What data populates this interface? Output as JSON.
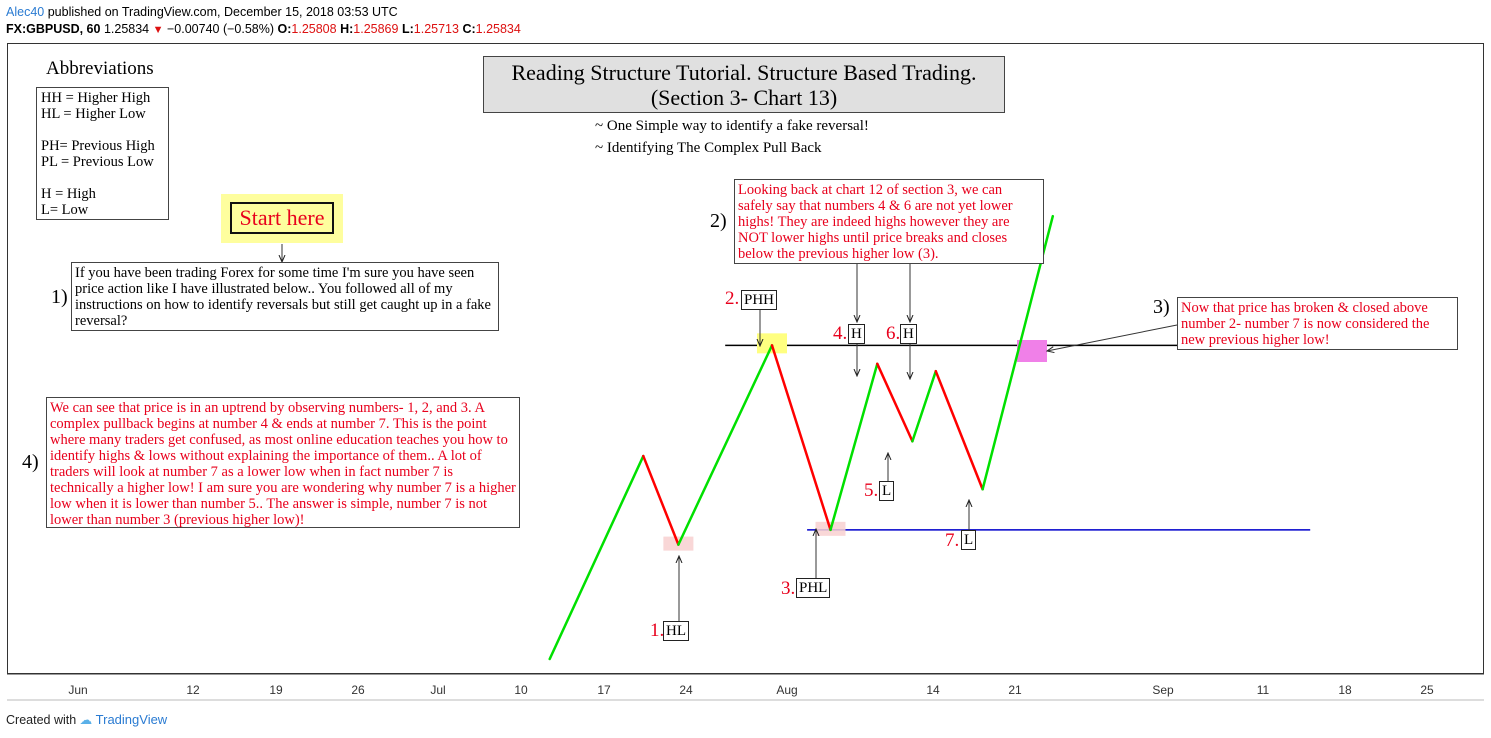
{
  "header": {
    "author": "Alec40",
    "published": "published on TradingView.com, December 15, 2018 03:53 UTC",
    "symbol": "FX:GBPUSD, 60",
    "last": "1.25834",
    "change": "−0.00740 (−0.58%)",
    "o_label": "O:",
    "o_value": "1.25808",
    "h_label": "H:",
    "h_value": "1.25869",
    "l_label": "L:",
    "l_value": "1.25713",
    "c_label": "C:",
    "c_value": "1.25834",
    "down_color": "#d11111"
  },
  "abbreviations": {
    "title": "Abbreviations",
    "items": [
      "HH = Higher High",
      "HL = Higher Low",
      "",
      "PH= Previous High",
      "PL = Previous Low",
      "",
      "H = High",
      "L= Low"
    ]
  },
  "title": {
    "line1": "Reading Structure Tutorial. Structure Based Trading.",
    "line2": "(Section 3- Chart 13)",
    "sub1": "~ One Simple way to identify a fake reversal!",
    "sub2": "~ Identifying The Complex Pull Back"
  },
  "start_button": "Start here",
  "notes": {
    "n1_number": "1)",
    "n1": "If you have been trading Forex for some time I'm sure you have seen price action like I have illustrated below.. You followed all of my instructions on how to identify reversals but still get caught up in a fake reversal?",
    "n2_number": "2)",
    "n2": "Looking back at chart 12 of section 3, we can safely say that numbers 4 & 6 are not yet lower highs! They are indeed highs however they are NOT lower highs until price breaks and closes below the previous higher low (3).",
    "n3_number": "3)",
    "n3": "Now that price has broken & closed above number 2- number 7 is now considered the new previous higher low!",
    "n4_number": "4)",
    "n4": "We can see that price is in an uptrend by observing numbers- 1, 2, and 3. A complex pullback begins at number 4 & ends at number 7. This is the point where many traders get confused, as most online education teaches you how to identify highs & lows without explaining the importance of them.. A lot of traders will look at number 7 as a lower low when in fact number 7 is technically a higher low! I am sure you are wondering why number 7 is a higher low when it is lower than number 5.. The answer is simple, number 7 is not lower than number 3 (previous higher low)!"
  },
  "points": [
    {
      "num": "1.",
      "label": "HL"
    },
    {
      "num": "2.",
      "label": "PHH"
    },
    {
      "num": "3.",
      "label": "PHL"
    },
    {
      "num": "4.",
      "label": "H"
    },
    {
      "num": "5.",
      "label": "L"
    },
    {
      "num": "6.",
      "label": "H"
    },
    {
      "num": "7.",
      "label": "L"
    }
  ],
  "chart_data": {
    "type": "line",
    "x_axis": {
      "tick_labels": [
        "Jun",
        "12",
        "19",
        "26",
        "Jul",
        "10",
        "17",
        "24",
        "Aug",
        "14",
        "21",
        "Sep",
        "11",
        "18",
        "25"
      ],
      "range": [
        "2018-06-01",
        "2018-09-30"
      ]
    },
    "y_axis": "hidden",
    "series": [
      {
        "role": "drawn-path",
        "x": [
          "2018-07-12",
          "2018-07-20",
          "2018-07-23",
          "2018-07-31",
          "2018-08-05",
          "2018-08-09",
          "2018-08-12",
          "2018-08-14",
          "2018-08-18",
          "2018-08-24"
        ],
        "y": [
          0,
          0.55,
          0.31,
          0.85,
          0.35,
          0.8,
          0.59,
          0.78,
          0.46,
          1.2
        ],
        "up_color": "#00e000",
        "down_color": "#ff0000"
      }
    ],
    "horizontal_lines": [
      {
        "level": 0.85,
        "color": "#000000",
        "from": "2018-07-27",
        "to": "2018-09-15"
      },
      {
        "level": 0.35,
        "color": "#0000cc",
        "from": "2018-08-03",
        "to": "2018-09-15"
      }
    ],
    "highlight_colors": {
      "yellow": "#ffff80",
      "pink": "#f8d0d0",
      "magenta": "#f080e8"
    }
  },
  "footer": {
    "created": "Created with",
    "brand": "TradingView"
  }
}
